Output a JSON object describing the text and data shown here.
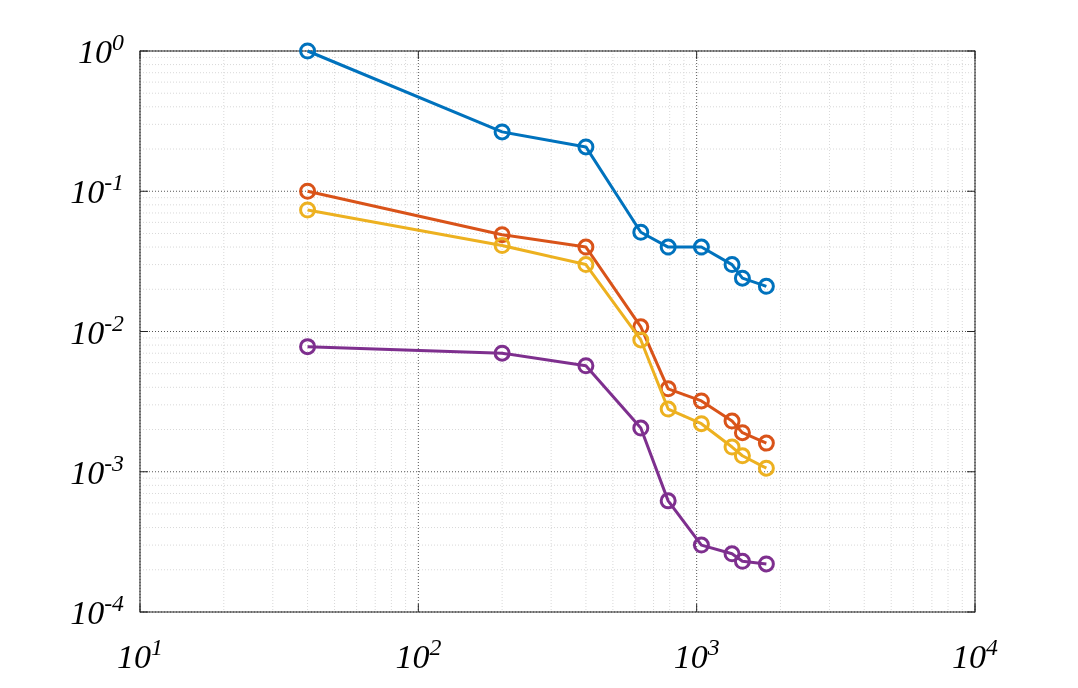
{
  "chart_data": {
    "type": "line",
    "log": "xy",
    "grid": true,
    "marker": "circle",
    "line_style": "solid",
    "xlim": [
      10,
      10000
    ],
    "ylim": [
      0.0001,
      1
    ],
    "xticks": [
      {
        "value": 10,
        "label": "10$^{1}$"
      },
      {
        "value": 100,
        "label": "10$^{2}$"
      },
      {
        "value": 1000,
        "label": "10$^{3}$"
      },
      {
        "value": 10000,
        "label": "10$^{4}$"
      }
    ],
    "yticks": [
      {
        "value": 0.0001,
        "label": "10$^{-4}$"
      },
      {
        "value": 0.001,
        "label": "10$^{-3}$"
      },
      {
        "value": 0.01,
        "label": "10$^{-2}$"
      },
      {
        "value": 0.1,
        "label": "10$^{-1}$"
      },
      {
        "value": 1,
        "label": "10$^{0}$"
      }
    ],
    "x": [
      40,
      200,
      400,
      630,
      790,
      1040,
      1340,
      1460,
      1780
    ],
    "series": [
      {
        "color": "#0072bd",
        "values": [
          1,
          0.265,
          0.207,
          0.051,
          0.04,
          0.04,
          0.03,
          0.024,
          0.021
        ]
      },
      {
        "color": "#d95319",
        "values": [
          0.1,
          0.049,
          0.04,
          0.0108,
          0.0039,
          0.0032,
          0.0023,
          0.0019,
          0.0016
        ]
      },
      {
        "color": "#edb120",
        "values": [
          0.0735,
          0.041,
          0.03,
          0.0087,
          0.0028,
          0.0022,
          0.0015,
          0.0013,
          0.00106
        ]
      },
      {
        "color": "#7e2f8e",
        "values": [
          0.0078,
          0.007,
          0.0057,
          0.00205,
          0.00062,
          0.0003,
          0.00026,
          0.00023,
          0.00022
        ]
      }
    ]
  }
}
